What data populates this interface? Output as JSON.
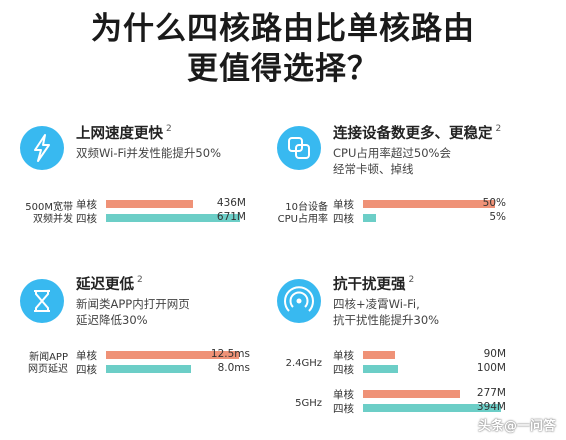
{
  "heading": {
    "line1": "为什么四核路由比单核路由",
    "line2": "更值得选择？"
  },
  "colors": {
    "single": "#ef9277",
    "quad": "#6ccec7",
    "icon": "#38b9f0"
  },
  "panels": [
    {
      "icon": "lightning-icon",
      "title": "上网速度更快",
      "sup": "2",
      "desc": [
        "双频Wi-Fi并发性能提升50%"
      ],
      "groups": [
        {
          "label": [
            "500M宽带",
            "双频并发"
          ],
          "bars": [
            {
              "series": "单核",
              "value": 436,
              "display": "436M"
            },
            {
              "series": "四核",
              "value": 671,
              "display": "671M"
            }
          ],
          "max": 700
        }
      ]
    },
    {
      "icon": "devices-icon",
      "title": "连接设备数更多、更稳定",
      "sup": "2",
      "desc": [
        "CPU占用率超过50%会",
        "经常卡顿、掉线"
      ],
      "groups": [
        {
          "label": [
            "10台设备",
            "CPU占用率"
          ],
          "bars": [
            {
              "series": "单核",
              "value": 50,
              "display": "50%"
            },
            {
              "series": "四核",
              "value": 5,
              "display": "5%"
            }
          ],
          "max": 53
        }
      ]
    },
    {
      "icon": "hourglass-icon",
      "title": "延迟更低",
      "sup": "2",
      "desc": [
        "新闻类APP内打开网页",
        "延迟降低30%"
      ],
      "groups": [
        {
          "label": [
            "新闻APP",
            "网页延迟"
          ],
          "bars": [
            {
              "series": "单核",
              "value": 12.5,
              "display": "12.5ms"
            },
            {
              "series": "四核",
              "value": 8.0,
              "display": "8.0ms"
            }
          ],
          "max": 13.2
        }
      ]
    },
    {
      "icon": "signal-icon",
      "title": "抗干扰更强",
      "sup": "2",
      "desc": [
        "四核+凌霄Wi-Fi,",
        "抗干扰性能提升30%"
      ],
      "groups": [
        {
          "label": [
            "2.4GHz"
          ],
          "bars": [
            {
              "series": "单核",
              "value": 90,
              "display": "90M"
            },
            {
              "series": "四核",
              "value": 100,
              "display": "100M"
            }
          ],
          "max": 400
        },
        {
          "label": [
            "5GHz"
          ],
          "bars": [
            {
              "series": "单核",
              "value": 277,
              "display": "277M"
            },
            {
              "series": "四核",
              "value": 394,
              "display": "394M"
            }
          ],
          "max": 400
        }
      ]
    }
  ],
  "chart_data": [
    {
      "type": "bar",
      "title": "上网速度更快",
      "categories": [
        "单核",
        "四核"
      ],
      "values": [
        436,
        671
      ],
      "unit": "M",
      "group": "500M宽带 双频并发"
    },
    {
      "type": "bar",
      "title": "连接设备数更多、更稳定",
      "categories": [
        "单核",
        "四核"
      ],
      "values": [
        50,
        5
      ],
      "unit": "%",
      "group": "10台设备 CPU占用率"
    },
    {
      "type": "bar",
      "title": "延迟更低",
      "categories": [
        "单核",
        "四核"
      ],
      "values": [
        12.5,
        8.0
      ],
      "unit": "ms",
      "group": "新闻APP 网页延迟"
    },
    {
      "type": "bar",
      "title": "抗干扰更强",
      "categories": [
        "2.4GHz",
        "5GHz"
      ],
      "series": [
        {
          "name": "单核",
          "values": [
            90,
            277
          ]
        },
        {
          "name": "四核",
          "values": [
            100,
            394
          ]
        }
      ],
      "unit": "M"
    }
  ],
  "watermark": "头条@一问答"
}
